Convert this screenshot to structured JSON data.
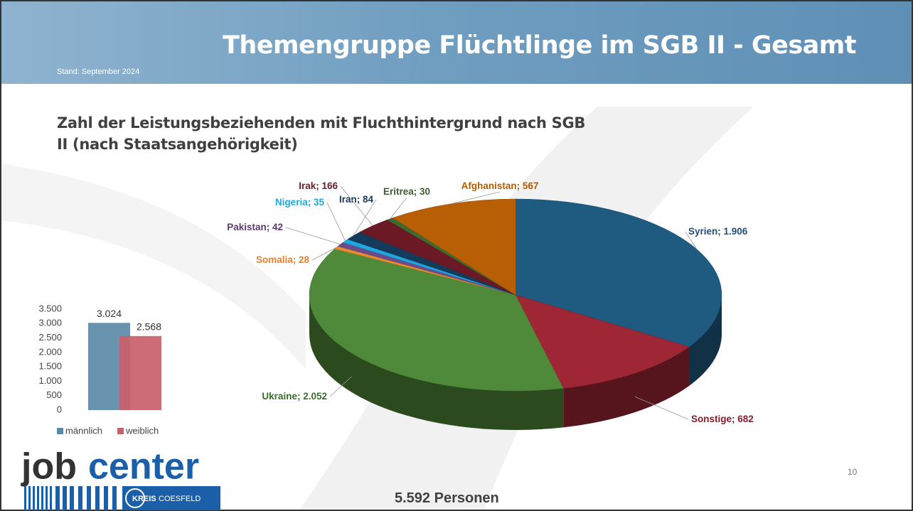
{
  "slide": {
    "title": "Themengruppe Flüchtlinge im SGB II - Gesamt",
    "stand": "Stand: September 2024",
    "total": "5.592 Personen",
    "page": "10"
  },
  "logo": {
    "word1": "job",
    "word2": "center",
    "kreis": "KREIS",
    "ort": "COESFELD"
  },
  "chart_data": [
    {
      "type": "pie",
      "title": "Zahl der Leistungsbeziehenden mit Fluchthintergrund nach SGB II (nach Staatsangehörigkeit)",
      "categories": [
        "Syrien",
        "Sonstige",
        "Ukraine",
        "Somalia",
        "Pakistan",
        "Nigeria",
        "Iran",
        "Irak",
        "Eritrea",
        "Afghanistan"
      ],
      "values": [
        1906,
        682,
        2052,
        28,
        42,
        35,
        84,
        166,
        30,
        567
      ],
      "value_labels": [
        "1.906",
        "682",
        "2.052",
        "28",
        "42",
        "35",
        "84",
        "166",
        "30",
        "567"
      ],
      "colors": [
        "#1f5a80",
        "#9e2635",
        "#4f8a3a",
        "#e88a2e",
        "#6b4c8a",
        "#1fa8e0",
        "#143b5c",
        "#6b1a25",
        "#3d6b2d",
        "#b85f05"
      ],
      "label_colors": [
        "#1f4e79",
        "#8b1a2b",
        "#3b6e2a",
        "#e6822a",
        "#5b3a74",
        "#1fa8e0",
        "#1c3a5a",
        "#6b1c2a",
        "#3b5e2a",
        "#b35c00"
      ]
    },
    {
      "type": "bar",
      "categories": [
        ""
      ],
      "series": [
        {
          "name": "männlich",
          "color": "#5a8aa8",
          "values": [
            3024
          ],
          "value_labels": [
            "3.024"
          ]
        },
        {
          "name": "weiblich",
          "color": "#c9606a",
          "values": [
            2568
          ],
          "value_labels": [
            "2.568"
          ]
        }
      ],
      "ylim": [
        0,
        3500
      ],
      "yticks": [
        0,
        500,
        {
          "value": 1000,
          "label": "1.000"
        },
        {
          "value": 1500,
          "label": "1.500"
        },
        {
          "value": 2000,
          "label": "2.000"
        },
        {
          "value": 2500,
          "label": "2.500"
        },
        {
          "value": 3000,
          "label": "3.000"
        },
        {
          "value": 3500,
          "label": "3.500"
        }
      ],
      "legend": "bottom"
    }
  ]
}
